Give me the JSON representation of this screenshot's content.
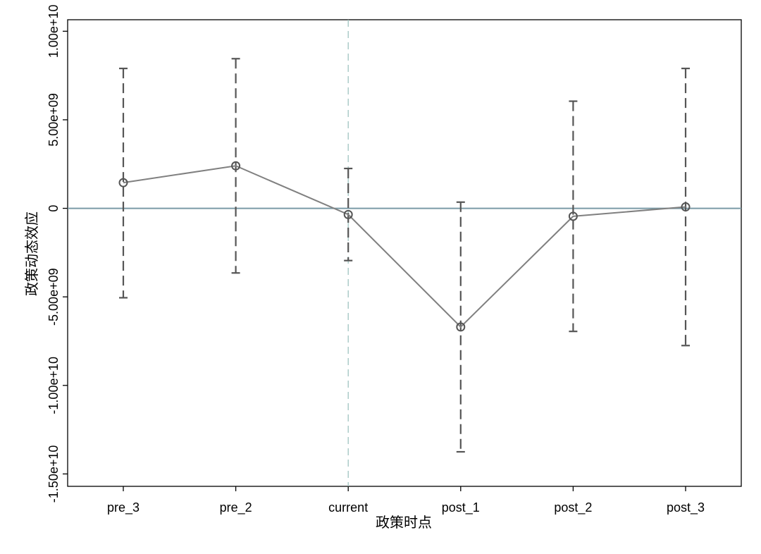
{
  "chart_data": {
    "type": "line",
    "title": "",
    "xlabel": "政策时点",
    "ylabel": "政策动态效应",
    "categories": [
      "pre_3",
      "pre_2",
      "current",
      "post_1",
      "post_2",
      "post_3"
    ],
    "series": [
      {
        "name": "",
        "values": [
          1450000000,
          2400000000,
          -350000000,
          -6700000000,
          -450000000,
          80000000
        ],
        "ci_lower": [
          -5050000000,
          -3650000000,
          -2950000000,
          -13750000000,
          -6950000000,
          -7750000000
        ],
        "ci_upper": [
          7900000000,
          8450000000,
          2250000000,
          350000000,
          6050000000,
          7900000000
        ]
      }
    ],
    "ylim": [
      -15700000000,
      10650000000
    ],
    "yticks": [
      -15000000000,
      -10000000000,
      -5000000000,
      0,
      5000000000,
      10000000000
    ],
    "ytick_labels": [
      "-1.50e+10",
      "-1.00e+10",
      "-5.00e+09",
      "0",
      "5.00e+09",
      "1.00e+10"
    ],
    "reference_lines": {
      "horizontal_y": 0,
      "vertical_category": "current"
    },
    "grid": false,
    "legend": "none",
    "colors": {
      "series_line": "#808080",
      "error_bar": "#555555",
      "zero_line": "#7a9aa6",
      "vertical_line": "#9fc4c0",
      "axis": "#000000"
    }
  }
}
